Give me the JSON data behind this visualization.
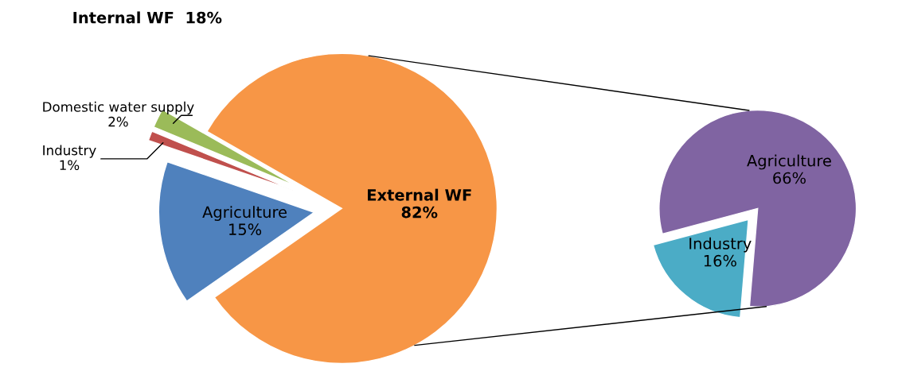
{
  "chart_data": [
    {
      "type": "pie",
      "title": "Internal WF  18%",
      "categories": [
        "Agriculture",
        "Industry",
        "Domestic water supply",
        "External WF"
      ],
      "values": [
        15,
        1,
        2,
        82
      ],
      "colors": [
        "#4f81bd",
        "#c0504d",
        "#9bbb59",
        "#f79646"
      ],
      "value_labels": [
        "15%",
        "1%",
        "2%",
        "82%"
      ],
      "legend": false
    },
    {
      "type": "pie",
      "categories": [
        "Agriculture",
        "Industry"
      ],
      "values": [
        66,
        16
      ],
      "colors": [
        "#8064a2",
        "#4bacc6"
      ],
      "value_labels": [
        "66%",
        "16%"
      ],
      "legend": false
    }
  ]
}
